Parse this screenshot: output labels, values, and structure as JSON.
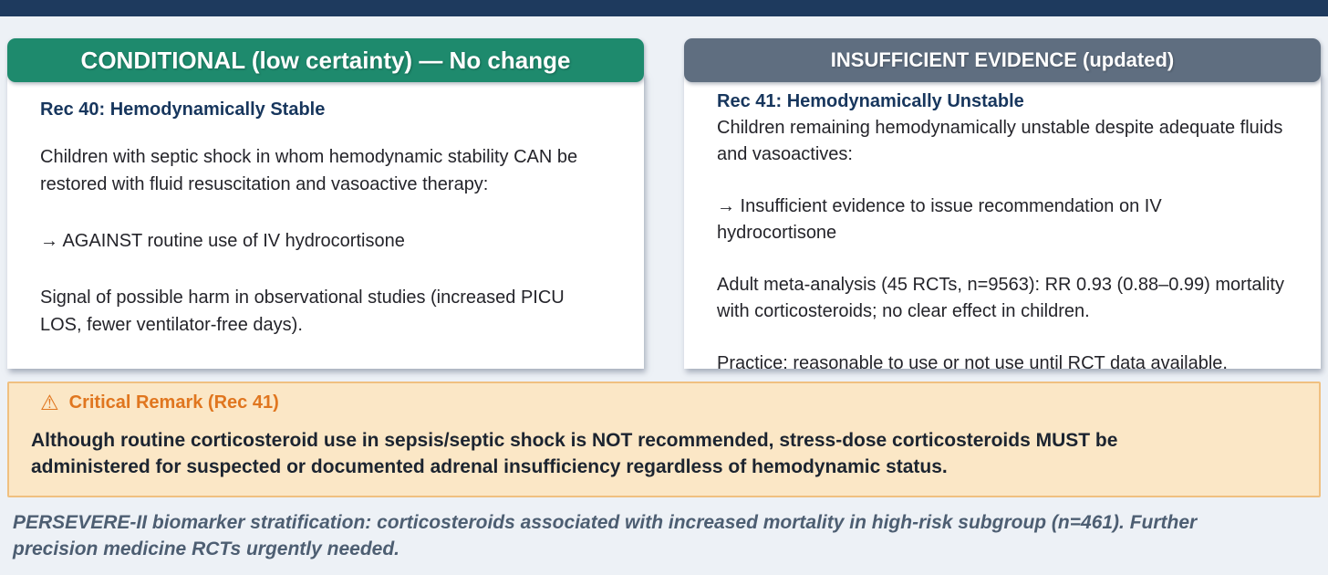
{
  "colors": {
    "top_bar": "#1e3a5e",
    "card_green_header": "#1e8a6d",
    "card_gray_header": "#5f6e80",
    "rec_title_navy": "#17365d",
    "warning_background": "#fbe7c6",
    "warning_border": "#f0c080",
    "warning_accent_orange": "#e0761f",
    "footnote_slate": "#4d5e72"
  },
  "cards": [
    {
      "header": "CONDITIONAL (low certainty) — No change",
      "header_color": "#1e8a6d",
      "title": "Rec 40: Hemodynamically Stable",
      "paragraphs": [
        "Children with septic shock in whom hemodynamic stability CAN be restored with fluid resuscitation and vasoactive therapy:",
        "→ AGAINST routine use of IV hydrocortisone",
        "Signal of possible harm in observational studies (increased PICU LOS, fewer ventilator-free days)."
      ]
    },
    {
      "header": "INSUFFICIENT EVIDENCE (updated)",
      "header_color": "#5f6e80",
      "title": "Rec 41: Hemodynamically Unstable",
      "paragraphs": [
        "Children remaining hemodynamically unstable despite adequate fluids and vasoactives:",
        "→ Insufficient evidence to issue recommendation on IV hydrocortisone",
        "Adult meta-analysis (45 RCTs, n=9563): RR 0.93 (0.88–0.99) mortality with corticosteroids; no clear effect in children.",
        "Practice: reasonable to use or not use until RCT data available."
      ]
    }
  ],
  "critical_remark": {
    "icon": "warning-triangle",
    "icon_glyph": "⚠",
    "title": "Critical Remark (Rec 41)",
    "body": "Although routine corticosteroid use in sepsis/septic shock is NOT recommended, stress-dose corticosteroids MUST be administered for suspected or documented adrenal insufficiency regardless of hemodynamic status."
  },
  "footnote": "PERSEVERE-II biomarker stratification: corticosteroids associated with increased mortality in high-risk subgroup (n=461). Further precision medicine RCTs urgently needed."
}
